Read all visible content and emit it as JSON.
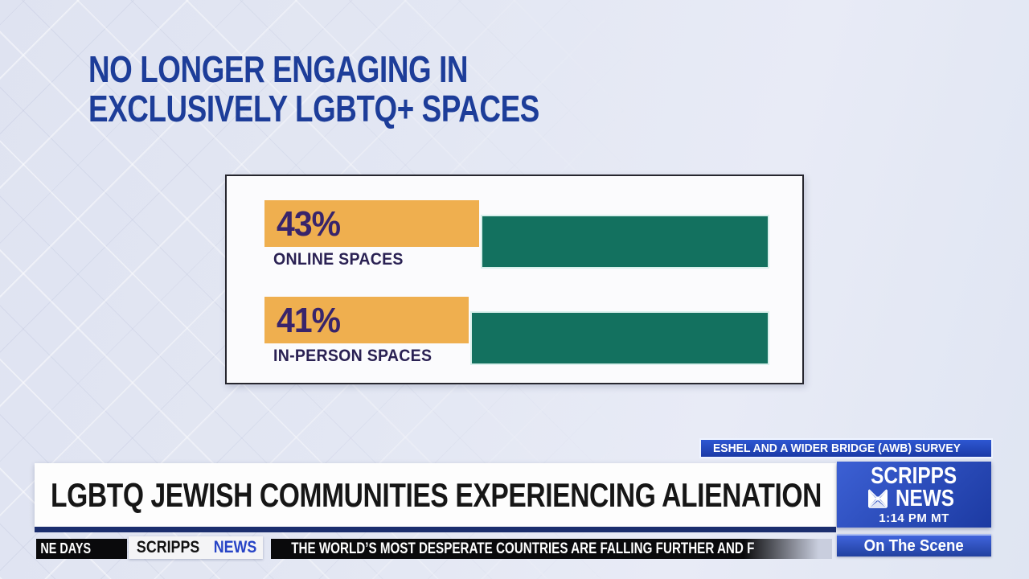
{
  "infographic": {
    "title_line1": "NO LONGER ENGAGING IN",
    "title_line2": "EXCLUSIVELY LGBTQ+ SPACES",
    "rows": [
      {
        "value_label": "43%",
        "label": "ONLINE SPACES"
      },
      {
        "value_label": "41%",
        "label": "IN-PERSON SPACES"
      }
    ]
  },
  "chart_data": {
    "type": "bar",
    "orientation": "horizontal",
    "title": "NO LONGER ENGAGING IN EXCLUSIVELY LGBTQ+ SPACES",
    "categories": [
      "ONLINE SPACES",
      "IN-PERSON SPACES"
    ],
    "values": [
      43,
      41
    ],
    "value_labels": [
      "43%",
      "41%"
    ],
    "xlim": [
      0,
      100
    ],
    "grid": false,
    "legend": "none",
    "series_note": "orange segment = stated percentage, green segment = remainder of scale",
    "source": "ESHEL AND A WIDER BRIDGE (AWB) SURVEY",
    "colors": {
      "value_bar": "#EFAF4F",
      "remainder_bar": "#13715F",
      "value_text": "#38246B",
      "category_text": "#2A2153"
    }
  },
  "lower_third": {
    "source_badge": "ESHEL AND A WIDER BRIDGE (AWB) SURVEY",
    "headline": "LGBTQ JEWISH COMMUNITIES EXPERIENCING ALIENATION",
    "network": {
      "line1": "SCRIPPS",
      "line2": "NEWS",
      "time": "1:14 PM MT"
    },
    "program": "On The Scene"
  },
  "ticker": {
    "left_text": "NE DAYS",
    "brand_scripps": "SCRIPPS",
    "brand_news": "NEWS",
    "headline": "THE WORLD’S MOST DESPERATE COUNTRIES ARE FALLING FURTHER AND F"
  },
  "icons": {
    "network_mark": "scripps-news-star-icon"
  },
  "colors": {
    "title_blue": "#1D3D99",
    "badge_blue": "#2E57D2",
    "network_blue": "#1C3AA2",
    "ticker_black": "#0A0A0C",
    "ticker_news_blue": "#2744C6",
    "banner_underline": "#1B2E6E",
    "background": "#E3E7F3"
  }
}
